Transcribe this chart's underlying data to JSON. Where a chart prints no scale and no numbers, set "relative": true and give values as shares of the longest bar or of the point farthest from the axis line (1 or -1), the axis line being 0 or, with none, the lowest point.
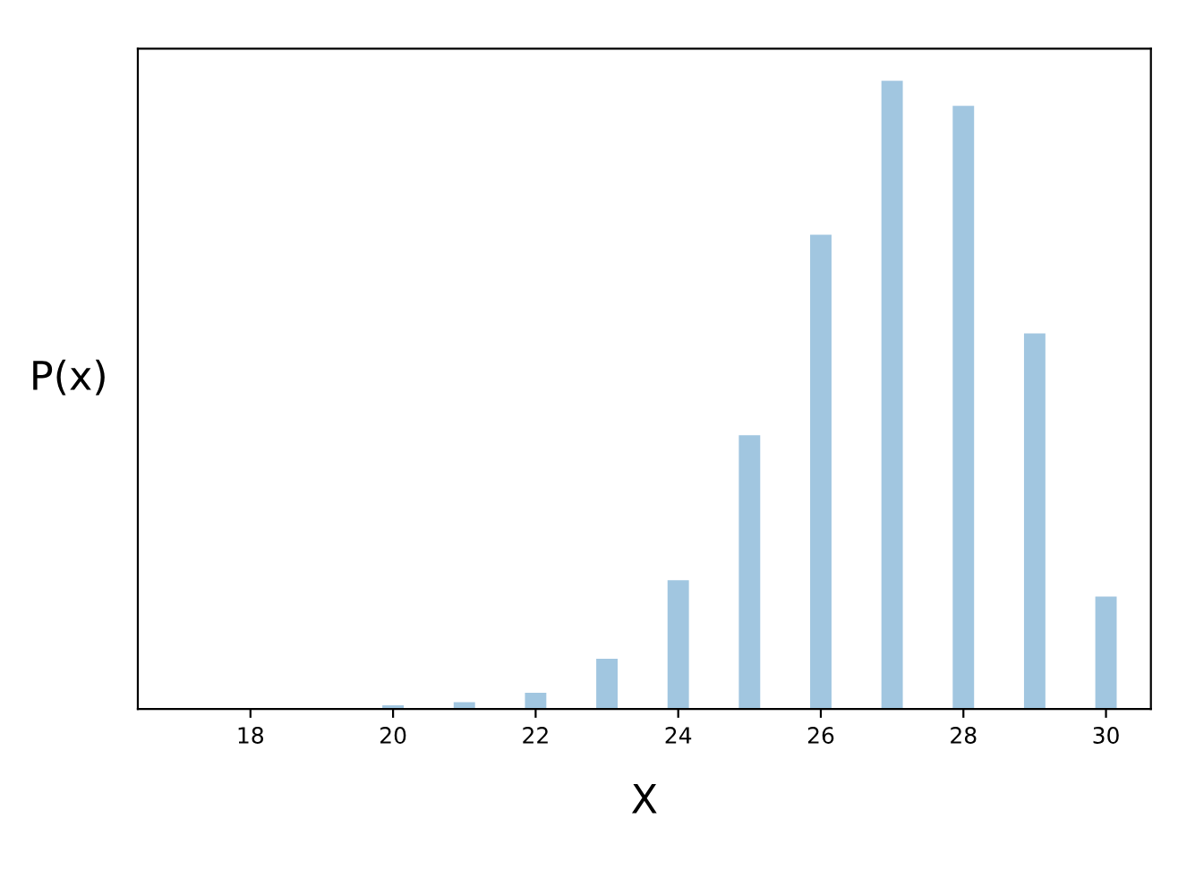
{
  "chart_data": {
    "type": "bar",
    "relative": true,
    "xlabel": "X",
    "ylabel": "P(x)",
    "x": [
      20,
      21,
      22,
      23,
      24,
      25,
      26,
      27,
      28,
      29,
      30
    ],
    "values": [
      0.006,
      0.011,
      0.026,
      0.08,
      0.205,
      0.436,
      0.755,
      1,
      0.96,
      0.598,
      0.179
    ],
    "color": "#a1c6e0",
    "xlim": [
      16.42,
      30.63
    ],
    "xticks": [
      18,
      20,
      22,
      24,
      26,
      28,
      30
    ],
    "grid": false,
    "tick_labels": "x"
  }
}
